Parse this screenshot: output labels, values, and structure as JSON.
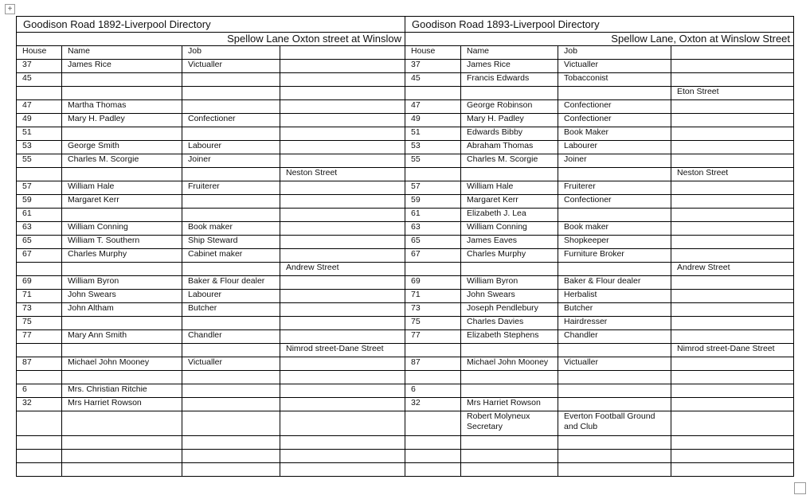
{
  "left": {
    "title": "Goodison Road 1892-Liverpool Directory",
    "subtitle": "Spellow Lane Oxton street at Winslow"
  },
  "right": {
    "title": "Goodison Road 1893-Liverpool Directory",
    "subtitle": "Spellow Lane, Oxton at Winslow Street"
  },
  "rows": [
    [
      "House",
      "Name",
      "Job",
      "",
      "House",
      "Name",
      "Job",
      ""
    ],
    [
      "37",
      "James Rice",
      "Victualler",
      "",
      "37",
      "James Rice",
      "Victualler",
      ""
    ],
    [
      "45",
      "",
      "",
      "",
      "45",
      "Francis Edwards",
      "Tobacconist",
      ""
    ],
    [
      "",
      "",
      "",
      "",
      "",
      "",
      "",
      "Eton Street"
    ],
    [
      "47",
      "Martha Thomas",
      "",
      "",
      "47",
      "George Robinson",
      "Confectioner",
      ""
    ],
    [
      "49",
      "Mary H. Padley",
      "Confectioner",
      "",
      "49",
      "Mary H. Padley",
      "Confectioner",
      ""
    ],
    [
      "51",
      "",
      "",
      "",
      "51",
      "Edwards Bibby",
      "Book Maker",
      ""
    ],
    [
      "53",
      "George Smith",
      "Labourer",
      "",
      "53",
      "Abraham Thomas",
      "Labourer",
      ""
    ],
    [
      "55",
      "Charles M. Scorgie",
      "Joiner",
      "",
      "55",
      "Charles M. Scorgie",
      "Joiner",
      ""
    ],
    [
      "",
      "",
      "",
      "Neston Street",
      "",
      "",
      "",
      "Neston Street"
    ],
    [
      "57",
      "William Hale",
      "Fruiterer",
      "",
      "57",
      "William Hale",
      "Fruiterer",
      ""
    ],
    [
      "59",
      "Margaret Kerr",
      "",
      "",
      "59",
      "Margaret Kerr",
      "Confectioner",
      ""
    ],
    [
      "61",
      "",
      "",
      "",
      "61",
      "Elizabeth J. Lea",
      "",
      ""
    ],
    [
      "63",
      "William Conning",
      "Book maker",
      "",
      "63",
      "William Conning",
      "Book maker",
      ""
    ],
    [
      "65",
      "William T. Southern",
      "Ship Steward",
      "",
      "65",
      "James Eaves",
      "Shopkeeper",
      ""
    ],
    [
      "67",
      "Charles Murphy",
      "Cabinet maker",
      "",
      "67",
      "Charles Murphy",
      "Furniture Broker",
      ""
    ],
    [
      "",
      "",
      "",
      "Andrew Street",
      "",
      "",
      "",
      "Andrew Street"
    ],
    [
      "69",
      "William Byron",
      "Baker & Flour dealer",
      "",
      "69",
      "William Byron",
      "Baker & Flour dealer",
      ""
    ],
    [
      "71",
      "John Swears",
      "Labourer",
      "",
      "71",
      "John Swears",
      "Herbalist",
      ""
    ],
    [
      "73",
      "John Altham",
      "Butcher",
      "",
      "73",
      "Joseph Pendlebury",
      "Butcher",
      ""
    ],
    [
      "75",
      "",
      "",
      "",
      "75",
      "Charles Davies",
      "Hairdresser",
      ""
    ],
    [
      "77",
      "Mary Ann Smith",
      "Chandler",
      "",
      "77",
      "Elizabeth Stephens",
      "Chandler",
      ""
    ],
    [
      "",
      "",
      "",
      "Nimrod street-Dane Street",
      "",
      "",
      "",
      "Nimrod street-Dane Street"
    ],
    [
      "87",
      "Michael John Mooney",
      "Victualler",
      "",
      "87",
      "Michael John Mooney",
      "Victualler",
      ""
    ],
    [
      "",
      "",
      "",
      "",
      "",
      "",
      "",
      ""
    ],
    [
      "6",
      "Mrs. Christian Ritchie",
      "",
      "",
      "6",
      "",
      "",
      ""
    ],
    [
      "32",
      "Mrs Harriet Rowson",
      "",
      "",
      "32",
      "Mrs Harriet Rowson",
      "",
      ""
    ],
    [
      "",
      "",
      "",
      "",
      "",
      "Robert Molyneux Secretary",
      "Everton Football Ground and Club",
      ""
    ],
    [
      "",
      "",
      "",
      "",
      "",
      "",
      "",
      ""
    ],
    [
      "",
      "",
      "",
      "",
      "",
      "",
      "",
      ""
    ],
    [
      "",
      "",
      "",
      "",
      "",
      "",
      "",
      ""
    ]
  ]
}
